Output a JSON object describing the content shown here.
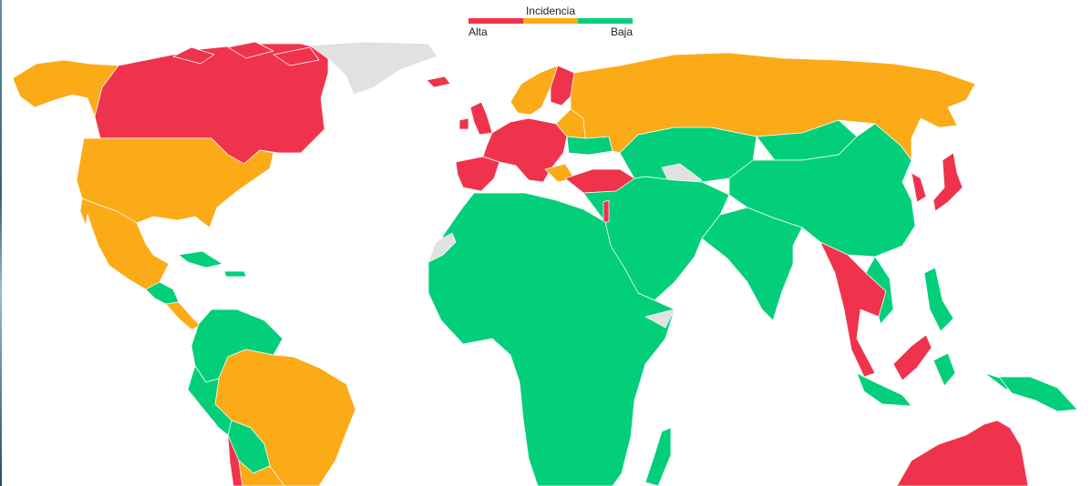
{
  "legend": {
    "title": "Incidencia",
    "high_label": "Alta",
    "low_label": "Baja",
    "scale": [
      {
        "level": "high",
        "color": "#f0334d"
      },
      {
        "level": "medium",
        "color": "#fbab18"
      },
      {
        "level": "low",
        "color": "#03cf7a"
      }
    ]
  },
  "colors": {
    "high": "#f0334d",
    "medium": "#fbab18",
    "low": "#03cf7a",
    "no_data": "#e1e1e1"
  },
  "regions": [
    {
      "id": "canada",
      "level": "high"
    },
    {
      "id": "alaska",
      "level": "medium"
    },
    {
      "id": "usa",
      "level": "medium"
    },
    {
      "id": "mexico",
      "level": "medium"
    },
    {
      "id": "greenland",
      "level": "no_data"
    },
    {
      "id": "central-america",
      "level": "low"
    },
    {
      "id": "cuba",
      "level": "low"
    },
    {
      "id": "panama-costa-rica",
      "level": "medium"
    },
    {
      "id": "colombia-venezuela",
      "level": "low"
    },
    {
      "id": "brazil",
      "level": "medium"
    },
    {
      "id": "peru",
      "level": "low"
    },
    {
      "id": "bolivia-paraguay",
      "level": "low"
    },
    {
      "id": "chile",
      "level": "high"
    },
    {
      "id": "argentina",
      "level": "medium"
    },
    {
      "id": "iceland",
      "level": "high"
    },
    {
      "id": "uk-ireland",
      "level": "high"
    },
    {
      "id": "iberia",
      "level": "high"
    },
    {
      "id": "western-europe",
      "level": "high"
    },
    {
      "id": "scandinavia",
      "level": "medium"
    },
    {
      "id": "finland",
      "level": "high"
    },
    {
      "id": "eastern-europe",
      "level": "medium"
    },
    {
      "id": "ukraine",
      "level": "low"
    },
    {
      "id": "turkey",
      "level": "high"
    },
    {
      "id": "russia",
      "level": "medium"
    },
    {
      "id": "central-asia",
      "level": "low"
    },
    {
      "id": "china",
      "level": "low"
    },
    {
      "id": "mongolia",
      "level": "low"
    },
    {
      "id": "middle-east",
      "level": "low"
    },
    {
      "id": "israel",
      "level": "high"
    },
    {
      "id": "india",
      "level": "low"
    },
    {
      "id": "southeast-asia",
      "level": "high"
    },
    {
      "id": "vietnam",
      "level": "low"
    },
    {
      "id": "japan",
      "level": "high"
    },
    {
      "id": "korea",
      "level": "high"
    },
    {
      "id": "philippines",
      "level": "low"
    },
    {
      "id": "borneo",
      "level": "high"
    },
    {
      "id": "indonesia",
      "level": "low"
    },
    {
      "id": "new-guinea",
      "level": "low"
    },
    {
      "id": "australia",
      "level": "high"
    },
    {
      "id": "africa",
      "level": "low"
    },
    {
      "id": "western-sahara",
      "level": "no_data"
    },
    {
      "id": "somalia",
      "level": "no_data"
    },
    {
      "id": "madagascar",
      "level": "low"
    }
  ]
}
